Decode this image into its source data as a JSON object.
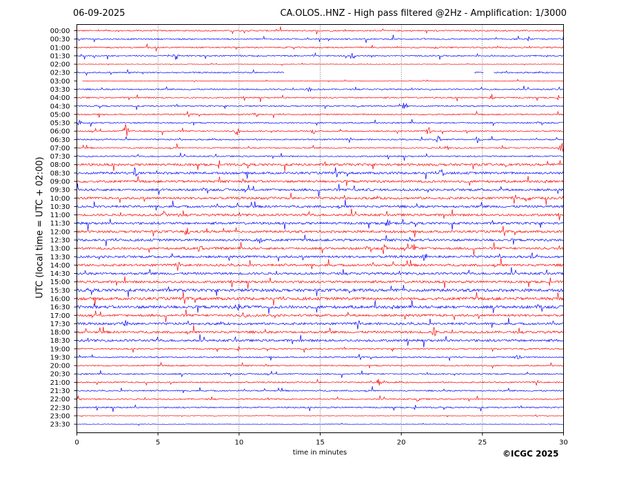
{
  "header": {
    "date": "06-09-2025",
    "title": "CA.OLOS..HNZ - High pass filtered @2Hz - Amplification: 1/3000"
  },
  "axes": {
    "ylabel": "UTC (local time = UTC + 02:00)",
    "xlabel": "time in minutes"
  },
  "footer": {
    "copyright": "©ICGC 2025"
  },
  "colors": {
    "red_trace": "#ff0000",
    "blue_trace": "#0000ff",
    "frame": "#000000",
    "grid": "#000000"
  },
  "chart_data": {
    "type": "helicorder",
    "x_ticks": [
      0,
      5,
      10,
      15,
      20,
      25,
      30
    ],
    "xlim": [
      0,
      30
    ],
    "vertical_grid": [
      5,
      10,
      15,
      20,
      25
    ],
    "grid_style": "dotted",
    "row_labels": [
      "00:00",
      "00:30",
      "01:00",
      "01:30",
      "02:00",
      "02:30",
      "03:00",
      "03:30",
      "04:00",
      "04:30",
      "05:00",
      "05:30",
      "06:00",
      "06:30",
      "07:00",
      "07:30",
      "08:00",
      "08:30",
      "09:00",
      "09:30",
      "10:00",
      "10:30",
      "11:00",
      "11:30",
      "12:00",
      "12:30",
      "13:00",
      "13:30",
      "14:00",
      "14:30",
      "15:00",
      "15:30",
      "16:00",
      "16:30",
      "17:00",
      "17:30",
      "18:00",
      "18:30",
      "19:00",
      "19:30",
      "20:00",
      "20:30",
      "21:00",
      "21:30",
      "22:00",
      "22:30",
      "23:00",
      "23:30"
    ],
    "row_colors": [
      "red",
      "blue"
    ],
    "data_gaps": [
      {
        "row": "02:30",
        "from_min": 12.8,
        "to_min": 24.5
      },
      {
        "row": "02:30",
        "from_min": 25.1,
        "to_min": 25.7
      },
      {
        "row": "03:00",
        "from_min": 0.0,
        "to_min": 0.3
      }
    ],
    "events": [
      {
        "row": "01:30",
        "minute": 6.1,
        "amp": 0.45
      },
      {
        "row": "01:30",
        "minute": 17.0,
        "amp": 0.4
      },
      {
        "row": "02:30",
        "minute": 3.1,
        "amp": 0.25
      },
      {
        "row": "03:30",
        "minute": 14.3,
        "amp": 0.3
      },
      {
        "row": "04:00",
        "minute": 25.6,
        "amp": 0.4
      },
      {
        "row": "04:30",
        "minute": 20.2,
        "amp": 0.45
      },
      {
        "row": "05:00",
        "minute": 11.0,
        "amp": 0.35
      },
      {
        "row": "05:30",
        "minute": 0.2,
        "amp": 0.35
      },
      {
        "row": "06:00",
        "minute": 3.0,
        "amp": 0.7
      },
      {
        "row": "06:00",
        "minute": 9.9,
        "amp": 0.5
      },
      {
        "row": "06:00",
        "minute": 14.6,
        "amp": 0.35
      },
      {
        "row": "06:00",
        "minute": 21.7,
        "amp": 0.4
      },
      {
        "row": "06:30",
        "minute": 22.3,
        "amp": 0.35
      },
      {
        "row": "06:30",
        "minute": 24.7,
        "amp": 0.35
      },
      {
        "row": "07:00",
        "minute": 29.9,
        "amp": 0.5
      },
      {
        "row": "07:00",
        "minute": 22.8,
        "amp": 0.4
      },
      {
        "row": "08:30",
        "minute": 3.6,
        "amp": 0.5
      },
      {
        "row": "08:30",
        "minute": 22.5,
        "amp": 0.45
      },
      {
        "row": "09:30",
        "minute": 17.1,
        "amp": 0.4
      },
      {
        "row": "10:00",
        "minute": 27.8,
        "amp": 0.45
      },
      {
        "row": "11:00",
        "minute": 5.4,
        "amp": 0.35
      },
      {
        "row": "11:30",
        "minute": 19.2,
        "amp": 0.35
      },
      {
        "row": "12:00",
        "minute": 6.8,
        "amp": 0.35
      },
      {
        "row": "12:30",
        "minute": 11.3,
        "amp": 0.35
      },
      {
        "row": "13:00",
        "minute": 7.6,
        "amp": 0.35
      },
      {
        "row": "13:00",
        "minute": 18.9,
        "amp": 0.4
      },
      {
        "row": "13:00",
        "minute": 20.8,
        "amp": 0.4
      },
      {
        "row": "13:30",
        "minute": 21.4,
        "amp": 0.45
      },
      {
        "row": "13:30",
        "minute": 28.0,
        "amp": 0.35
      },
      {
        "row": "16:30",
        "minute": 9.9,
        "amp": 0.4
      },
      {
        "row": "17:00",
        "minute": 10.3,
        "amp": 0.35
      },
      {
        "row": "17:30",
        "minute": 3.0,
        "amp": 0.45
      },
      {
        "row": "18:00",
        "minute": 22.0,
        "amp": 0.5
      },
      {
        "row": "19:30",
        "minute": 27.2,
        "amp": 0.3
      },
      {
        "row": "21:00",
        "minute": 18.6,
        "amp": 0.35
      },
      {
        "row": "22:00",
        "minute": 0.05,
        "amp": 0.45
      },
      {
        "row": "22:00",
        "minute": 21.0,
        "amp": 0.35
      }
    ]
  }
}
